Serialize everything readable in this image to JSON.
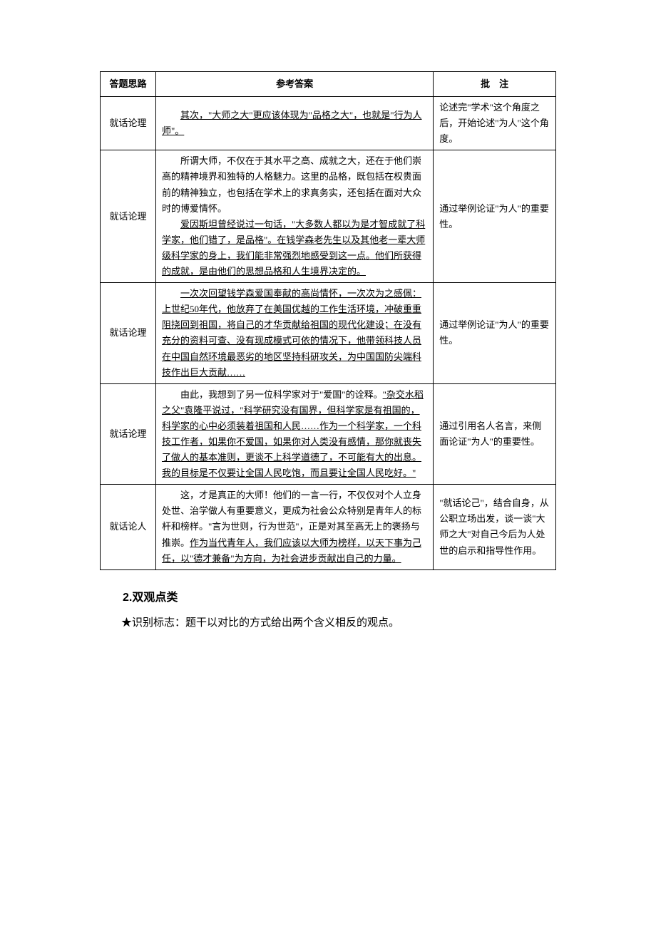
{
  "table": {
    "headers": {
      "thought": "答题思路",
      "answer": "参考答案",
      "note": "批　注"
    },
    "rows": [
      {
        "thought": "就话论理",
        "answer_pre": "",
        "answer_u": "其次，\"大师之大\"更应该体现为\"品格之大\"，也就是\"行为人师\"。",
        "answer_post": "",
        "note": "论述完\"学术\"这个角度之后，开始论述\"为人\"这个角度。"
      },
      {
        "thought": "就话论理",
        "answer_pre": "所谓大师，不仅在于其水平之高、成就之大，还在于他们崇高的精神境界和独特的人格魅力。这里的品格，既包括在权贵面前的精神独立，也包括在学术上的求真务实，还包括在面对大众时的博爱情怀。\n",
        "answer_u": "爱因斯坦曾经说过一句话，\"大多数人都以为是才智成就了科学家，他们错了，是品格\"。在钱学森老先生以及其他老一辈大师级科学家的身上，我们能非常强烈地感受到这一点。他们所获得的成就，是由他们的思想品格和人生境界决定的。",
        "answer_post": "",
        "note": "通过举例论证\"为人\"的重要性。"
      },
      {
        "thought": "就话论理",
        "answer_pre": "",
        "answer_u": "一次次回望钱学森爱国奉献的高尚情怀，一次次为之感佩：上世纪50年代，他放弃了在美国优越的工作生活环境，冲破重重阻挠回到祖国，将自己的才华贡献给祖国的现代化建设；在没有充分的资料可查、没有现成模式可依的情况下，他带领科技人员在中国自然环境最恶劣的地区坚持科研攻关，为中国国防尖端科技作出巨大贡献……",
        "answer_post": "",
        "note": "通过举例论证\"为人\"的重要性。"
      },
      {
        "thought": "就话论理",
        "answer_pre": "由此，我想到了另一位科学家对于\"爱国\"的诠释。",
        "answer_u": "\"杂交水稻之父\"袁隆平说过，\"科学研究没有国界，但科学家是有祖国的，科学家的心中必须装着祖国和人民……作为一个科学家，一个科技工作者，如果你不爱国，如果你对人类没有感情，那你就丧失了做人的基本准则，更谈不上科学道德了，不可能有大的出息。我的目标是不仅要让全国人民吃饱，而且要让全国人民吃好。\"",
        "answer_post": "",
        "note": "通过引用名人名言，来侧面论证\"为人\"的重要性。"
      },
      {
        "thought": "就话论人",
        "answer_pre": "这，才是真正的大师！他们的一言一行，不仅仅对个人立身处世、治学做人有重要意义，更成为社会公众特别是青年人的标杆和榜样。\"言为世则，行为世范\"，正是对其至高无上的褒扬与推崇。",
        "answer_u": "作为当代青年人，我们应该以大师为榜样，以天下事为己任，以\"德才兼备\"为方向，为社会进步贡献出自己的力量。",
        "answer_post": "",
        "note": "\"就话论己\"，结合自身，从公职立场出发，谈一谈\"大师之大\"对自己今后为人处世的启示和指导性作用。"
      }
    ]
  },
  "section": {
    "heading": "2.双观点类",
    "sub": "★识别标志：题干以对比的方式给出两个含义相反的观点。"
  }
}
